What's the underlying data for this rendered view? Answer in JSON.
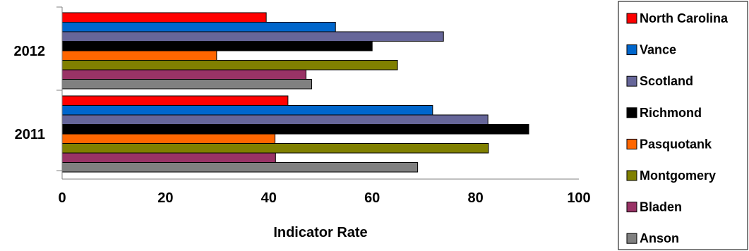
{
  "chart_data": {
    "type": "bar",
    "orientation": "horizontal",
    "categories": [
      "2011",
      "2012"
    ],
    "series": [
      {
        "name": "Anson",
        "color": "#808080",
        "values": [
          68.8,
          48.3
        ]
      },
      {
        "name": "Bladen",
        "color": "#993366",
        "values": [
          41.3,
          47.2
        ]
      },
      {
        "name": "Montgomery",
        "color": "#808000",
        "values": [
          82.5,
          64.9
        ]
      },
      {
        "name": "Pasquotank",
        "color": "#FF6600",
        "values": [
          41.2,
          29.9
        ]
      },
      {
        "name": "Richmond",
        "color": "#000000",
        "values": [
          90.3,
          60.0
        ]
      },
      {
        "name": "Scotland",
        "color": "#666699",
        "values": [
          82.4,
          73.8
        ]
      },
      {
        "name": "Vance",
        "color": "#0066CC",
        "values": [
          71.7,
          52.9
        ]
      },
      {
        "name": "North Carolina",
        "color": "#FF0000",
        "values": [
          43.7,
          39.5
        ]
      }
    ],
    "xlabel": "Indicator Rate",
    "ylabel": "",
    "xlim": [
      0,
      100
    ],
    "x_ticks": [
      0,
      20,
      40,
      60,
      80,
      100
    ],
    "grid": false,
    "legend_position": "right",
    "legend_order": [
      "North Carolina",
      "Vance",
      "Scotland",
      "Richmond",
      "Pasquotank",
      "Montgomery",
      "Bladen",
      "Anson"
    ]
  }
}
